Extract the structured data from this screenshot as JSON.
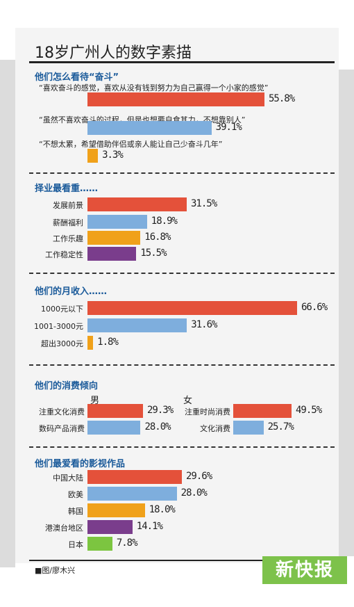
{
  "title": "18岁广州人的数字素描",
  "credit": "■图/廖木兴",
  "logo_text": "新快报",
  "colors": {
    "red": "#e4513a",
    "blue": "#7eaedd",
    "orange": "#f0a11a",
    "purple": "#7a3d8c",
    "green": "#7cc540"
  },
  "chart_data": [
    {
      "type": "bar",
      "title": "他们怎么看待“奋斗”",
      "categories": [
        "“喜欢奋斗的感觉，喜欢从没有钱到努力为自己赢得一个小家的感觉”",
        "“虽然不喜欢奋斗的过程，但是也想要自食其力，不想靠别人”",
        "“不想太累，希望借助伴侣或亲人能让自己少奋斗几年”"
      ],
      "values": [
        55.8,
        39.1,
        3.3
      ],
      "labels": [
        "55.8%",
        "39.1%",
        "3.3%"
      ],
      "colors": [
        "red",
        "blue",
        "orange"
      ]
    },
    {
      "type": "bar",
      "title": "择业最看重……",
      "categories": [
        "发展前景",
        "薪酬福利",
        "工作乐趣",
        "工作稳定性"
      ],
      "values": [
        31.5,
        18.9,
        16.8,
        15.5
      ],
      "labels": [
        "31.5%",
        "18.9%",
        "16.8%",
        "15.5%"
      ],
      "colors": [
        "red",
        "blue",
        "orange",
        "purple"
      ]
    },
    {
      "type": "bar",
      "title": "他们的月收入……",
      "categories": [
        "1000元以下",
        "1001-3000元",
        "超出3000元"
      ],
      "values": [
        66.6,
        31.6,
        1.8
      ],
      "labels": [
        "66.6%",
        "31.6%",
        "1.8%"
      ],
      "colors": [
        "red",
        "blue",
        "orange"
      ]
    },
    {
      "type": "bar",
      "title": "他们的消费倾向",
      "groups": [
        {
          "name": "男",
          "categories": [
            "注重文化消费",
            "数码产品消费"
          ],
          "values": [
            29.3,
            28.0
          ],
          "labels": [
            "29.3%",
            "28.0%"
          ],
          "colors": [
            "red",
            "blue"
          ]
        },
        {
          "name": "女",
          "categories": [
            "注重时尚消费",
            "文化消费"
          ],
          "values": [
            49.5,
            25.7
          ],
          "labels": [
            "49.5%",
            "25.7%"
          ],
          "colors": [
            "red",
            "blue"
          ]
        }
      ]
    },
    {
      "type": "bar",
      "title": "他们最爱看的影视作品",
      "categories": [
        "中国大陆",
        "欧美",
        "韩国",
        "港澳台地区",
        "日本"
      ],
      "values": [
        29.6,
        28.0,
        18.0,
        14.1,
        7.8
      ],
      "labels": [
        "29.6%",
        "28.0%",
        "18.0%",
        "14.1%",
        "7.8%"
      ],
      "colors": [
        "red",
        "blue",
        "orange",
        "purple",
        "green"
      ]
    }
  ]
}
